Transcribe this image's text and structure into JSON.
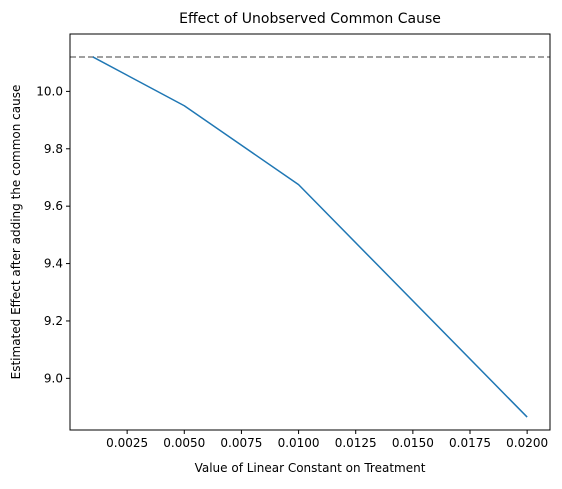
{
  "chart_data": {
    "type": "line",
    "title": "Effect of Unobserved Common Cause",
    "xlabel": "Value of Linear Constant on Treatment",
    "ylabel": "Estimated Effect after adding the common cause",
    "xlim": [
      0.0,
      0.021
    ],
    "ylim": [
      8.82,
      10.2
    ],
    "x_ticks": [
      0.0025,
      0.005,
      0.0075,
      0.01,
      0.0125,
      0.015,
      0.0175,
      0.02
    ],
    "x_tick_labels": [
      "0.0025",
      "0.0050",
      "0.0075",
      "0.0100",
      "0.0125",
      "0.0150",
      "0.0175",
      "0.0200"
    ],
    "y_ticks": [
      9.0,
      9.2,
      9.4,
      9.6,
      9.8,
      10.0
    ],
    "y_tick_labels": [
      "9.0",
      "9.2",
      "9.4",
      "9.6",
      "9.8",
      "10.0"
    ],
    "grid": false,
    "legend": "none",
    "series": [
      {
        "x": [
          0.001,
          0.005,
          0.01,
          0.02
        ],
        "y": [
          10.12,
          9.95,
          9.675,
          8.865
        ],
        "color": "#1f77b4",
        "style": "solid"
      }
    ],
    "reference_lines": [
      {
        "orientation": "horizontal",
        "y": 10.12,
        "color": "#808080",
        "style": "dashed"
      }
    ]
  }
}
